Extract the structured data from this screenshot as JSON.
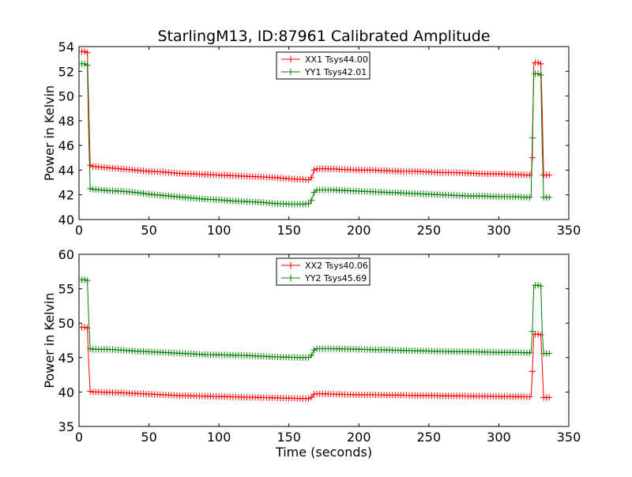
{
  "chart_data": [
    {
      "type": "line",
      "title": "StarlingM13, ID:87961 Calibrated Amplitude",
      "xlabel": "",
      "ylabel": "Power in Kelvin",
      "xlim": [
        0,
        350
      ],
      "ylim": [
        40,
        54
      ],
      "xticks": [
        0,
        50,
        100,
        150,
        200,
        250,
        300,
        350
      ],
      "yticks": [
        40,
        42,
        44,
        46,
        48,
        50,
        52,
        54
      ],
      "grid": false,
      "legend_position": "top-center",
      "series": [
        {
          "name": "XX1 Tsys44.00",
          "color": "#ff0000",
          "marker": "+",
          "x": [
            2,
            4,
            6,
            7,
            8,
            9,
            10,
            15,
            20,
            30,
            40,
            50,
            60,
            70,
            80,
            90,
            100,
            110,
            120,
            130,
            140,
            150,
            160,
            165,
            167,
            168,
            170,
            175,
            180,
            190,
            200,
            210,
            220,
            230,
            240,
            250,
            260,
            270,
            280,
            290,
            300,
            310,
            320,
            323,
            324,
            325,
            326,
            328,
            330,
            331,
            332,
            334,
            336
          ],
          "y": [
            53.6,
            53.6,
            53.5,
            49,
            44.4,
            44.3,
            44.3,
            44.25,
            44.2,
            44.1,
            44.0,
            43.9,
            43.85,
            43.75,
            43.7,
            43.65,
            43.6,
            43.55,
            43.5,
            43.45,
            43.4,
            43.3,
            43.25,
            43.2,
            43.6,
            44.0,
            44.1,
            44.1,
            44.1,
            44.05,
            44.0,
            44.0,
            43.95,
            43.9,
            43.9,
            43.85,
            43.8,
            43.8,
            43.75,
            43.7,
            43.7,
            43.65,
            43.6,
            43.6,
            45,
            52.7,
            52.7,
            52.7,
            52.6,
            49,
            43.6,
            43.6,
            43.6
          ]
        },
        {
          "name": "YY1 Tsys42.01",
          "color": "#008000",
          "marker": "+",
          "x": [
            2,
            4,
            6,
            7,
            8,
            9,
            10,
            15,
            20,
            30,
            40,
            50,
            60,
            70,
            80,
            90,
            100,
            110,
            120,
            130,
            140,
            150,
            160,
            165,
            167,
            168,
            170,
            175,
            180,
            190,
            200,
            210,
            220,
            230,
            240,
            250,
            260,
            270,
            280,
            290,
            300,
            310,
            320,
            323,
            324,
            325,
            326,
            328,
            330,
            331,
            332,
            334,
            336
          ],
          "y": [
            52.6,
            52.6,
            52.5,
            46.5,
            42.5,
            42.45,
            42.45,
            42.4,
            42.35,
            42.3,
            42.2,
            42.05,
            41.95,
            41.85,
            41.75,
            41.65,
            41.6,
            41.5,
            41.45,
            41.4,
            41.3,
            41.25,
            41.25,
            41.3,
            41.8,
            42.2,
            42.4,
            42.4,
            42.4,
            42.35,
            42.3,
            42.25,
            42.2,
            42.15,
            42.1,
            42.05,
            42.0,
            41.95,
            41.9,
            41.9,
            41.85,
            41.85,
            41.8,
            41.8,
            46.6,
            51.8,
            51.8,
            51.8,
            51.7,
            46,
            41.8,
            41.8,
            41.8
          ]
        }
      ]
    },
    {
      "type": "line",
      "title": "",
      "xlabel": "Time (seconds)",
      "ylabel": "Power in Kelvin",
      "xlim": [
        0,
        350
      ],
      "ylim": [
        35,
        60
      ],
      "xticks": [
        0,
        50,
        100,
        150,
        200,
        250,
        300,
        350
      ],
      "yticks": [
        35,
        40,
        45,
        50,
        55,
        60
      ],
      "grid": false,
      "legend_position": "top-center",
      "series": [
        {
          "name": "XX2 Tsys40.06",
          "color": "#ff0000",
          "marker": "+",
          "x": [
            2,
            4,
            6,
            7,
            8,
            9,
            10,
            15,
            20,
            30,
            40,
            50,
            60,
            70,
            80,
            90,
            100,
            110,
            120,
            130,
            140,
            150,
            160,
            165,
            167,
            168,
            170,
            175,
            180,
            190,
            200,
            210,
            220,
            230,
            240,
            250,
            260,
            270,
            280,
            290,
            300,
            310,
            320,
            323,
            324,
            325,
            326,
            328,
            330,
            331,
            332,
            334,
            336
          ],
          "y": [
            49.4,
            49.4,
            49.3,
            43.9,
            40.1,
            40.05,
            40.0,
            40.0,
            39.95,
            39.9,
            39.8,
            39.7,
            39.6,
            39.5,
            39.45,
            39.4,
            39.35,
            39.3,
            39.25,
            39.2,
            39.15,
            39.1,
            39.05,
            39.05,
            39.4,
            39.7,
            39.75,
            39.75,
            39.7,
            39.65,
            39.6,
            39.6,
            39.55,
            39.55,
            39.5,
            39.5,
            39.45,
            39.45,
            39.4,
            39.4,
            39.35,
            39.35,
            39.3,
            39.3,
            43,
            48.4,
            48.4,
            48.4,
            48.3,
            44,
            39.2,
            39.2,
            39.2
          ]
        },
        {
          "name": "YY2 Tsys45.69",
          "color": "#008000",
          "marker": "+",
          "x": [
            2,
            4,
            6,
            7,
            8,
            9,
            10,
            15,
            20,
            30,
            40,
            50,
            60,
            70,
            80,
            90,
            100,
            110,
            120,
            130,
            140,
            150,
            160,
            165,
            167,
            168,
            170,
            175,
            180,
            190,
            200,
            210,
            220,
            230,
            240,
            250,
            260,
            270,
            280,
            290,
            300,
            310,
            320,
            323,
            324,
            325,
            326,
            328,
            330,
            331,
            332,
            334,
            336
          ],
          "y": [
            56.3,
            56.3,
            56.2,
            50.3,
            46.3,
            46.25,
            46.2,
            46.2,
            46.2,
            46.1,
            45.95,
            45.85,
            45.75,
            45.65,
            45.55,
            45.45,
            45.4,
            45.35,
            45.3,
            45.2,
            45.1,
            45.05,
            45.0,
            45.05,
            45.6,
            46.1,
            46.3,
            46.3,
            46.3,
            46.25,
            46.2,
            46.15,
            46.1,
            46.05,
            46.0,
            45.95,
            45.9,
            45.85,
            45.85,
            45.8,
            45.75,
            45.75,
            45.7,
            45.7,
            48.8,
            55.5,
            55.5,
            55.5,
            55.4,
            48.8,
            45.6,
            45.6,
            45.6
          ]
        }
      ]
    }
  ]
}
